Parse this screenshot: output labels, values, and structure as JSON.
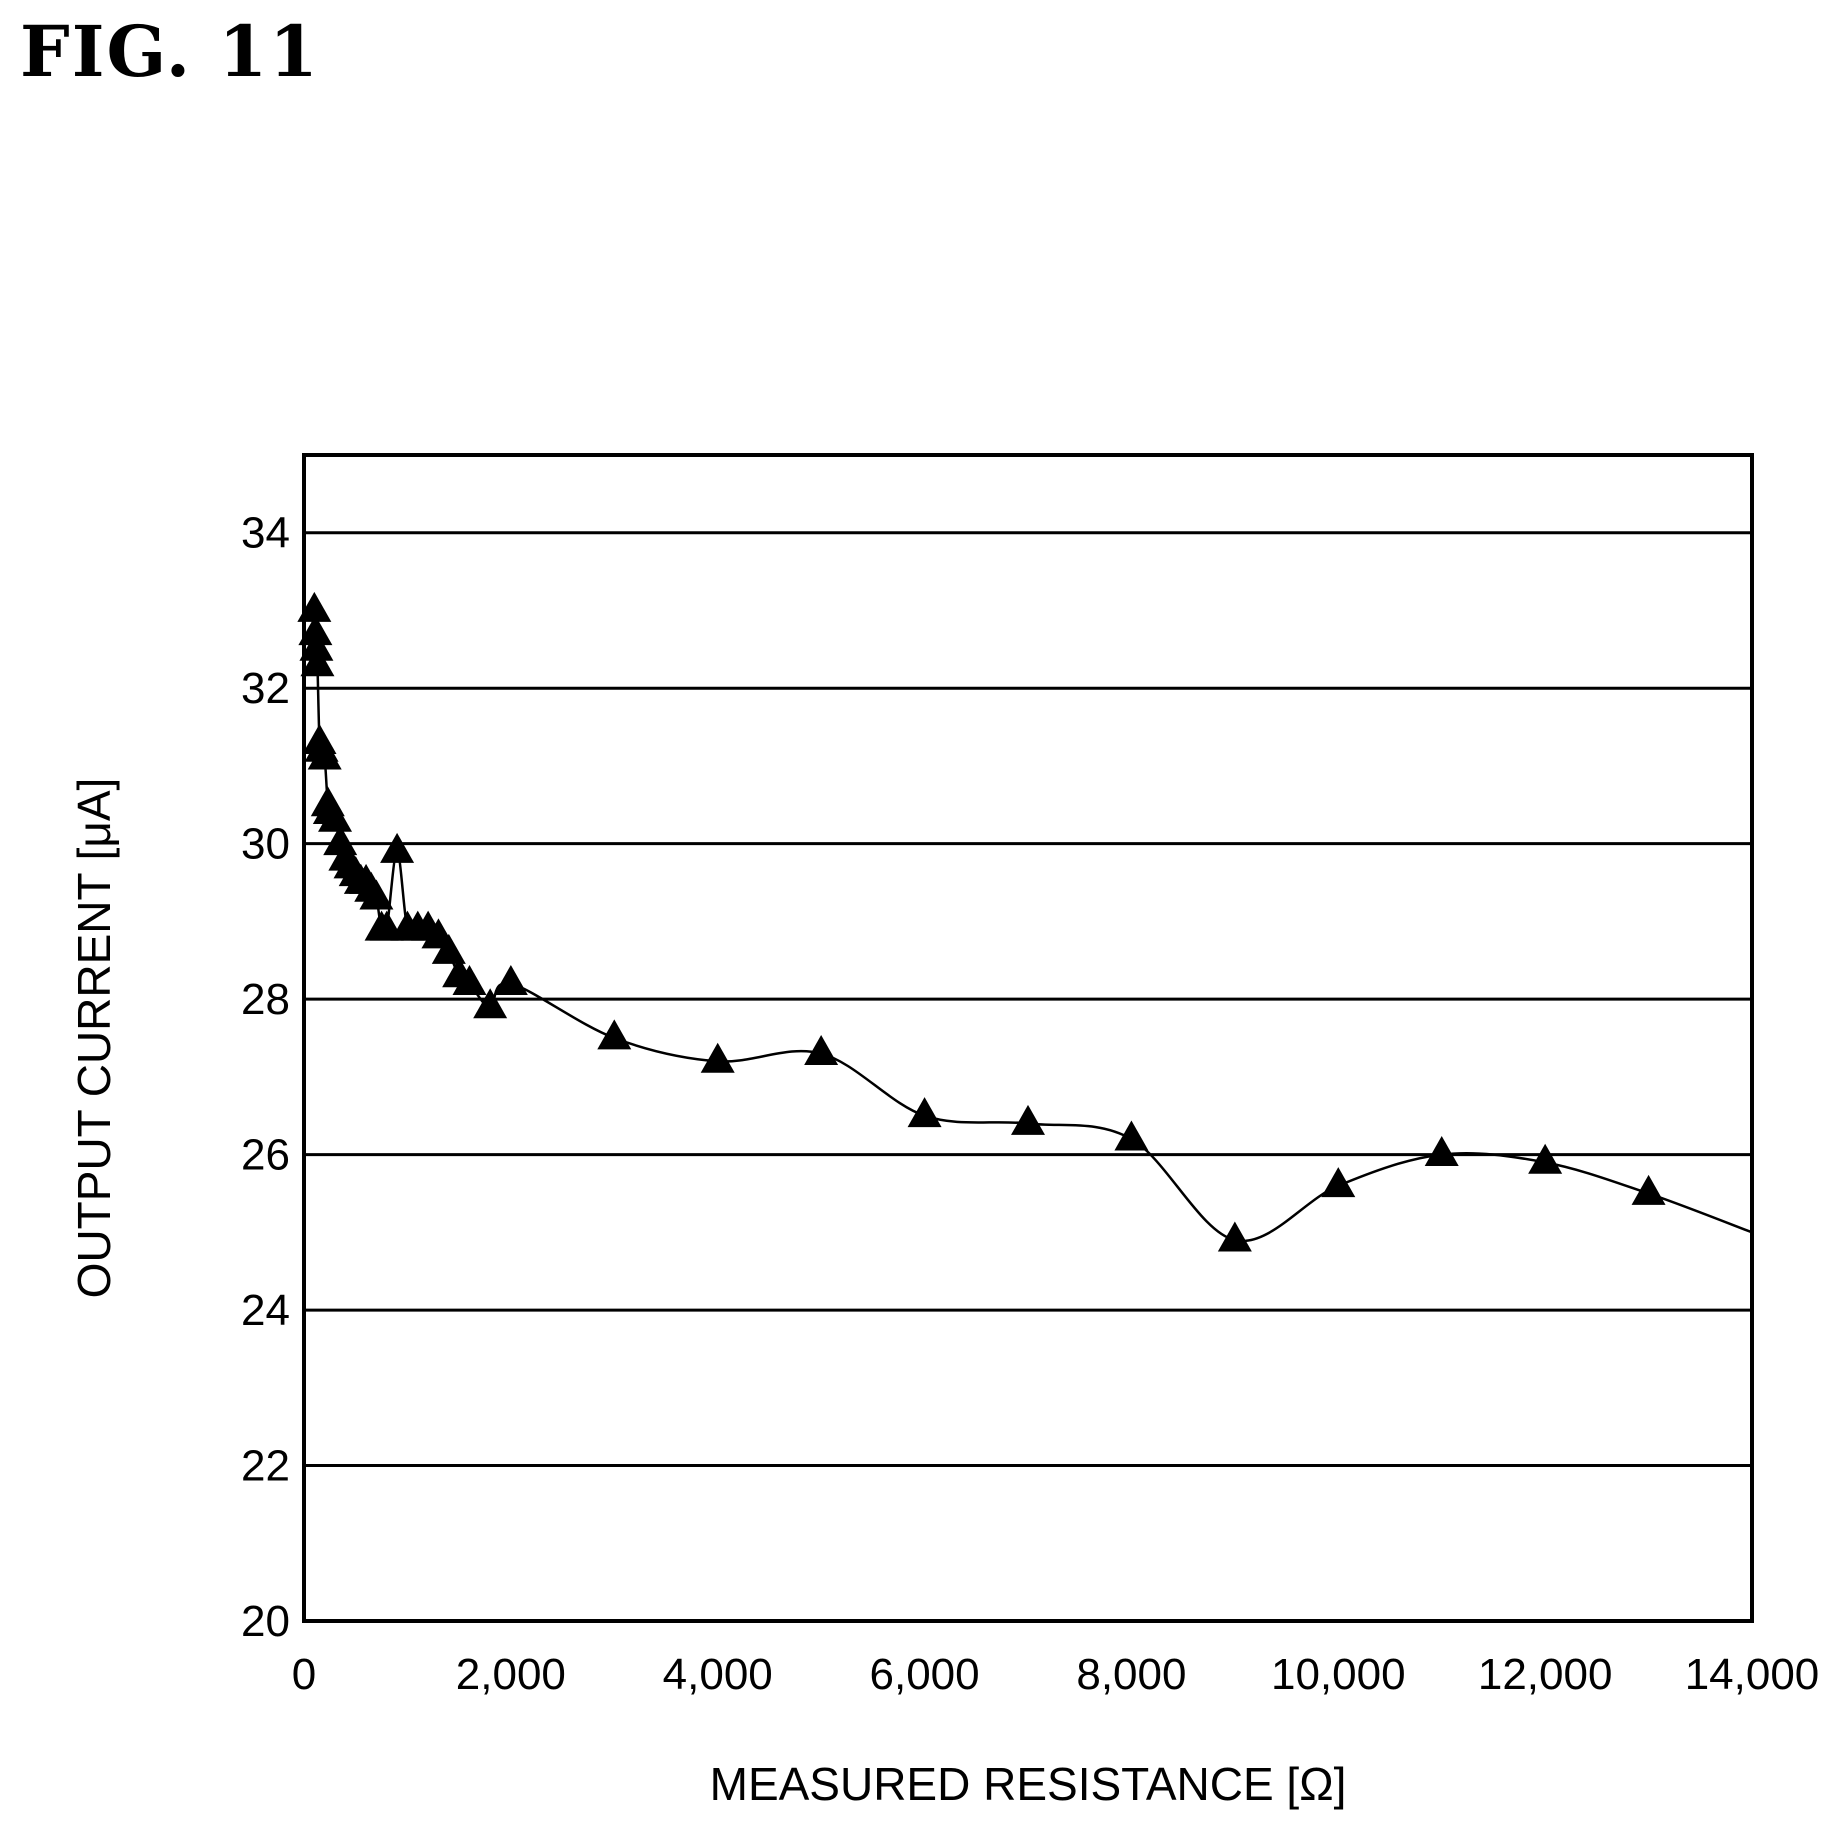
{
  "figure_label": "FIG. 11",
  "chart_data": {
    "type": "line",
    "xlabel": "MEASURED RESISTANCE [Ω]",
    "ylabel": "OUTPUT CURRENT [μA]",
    "xlim": [
      0,
      14000
    ],
    "ylim": [
      20,
      35
    ],
    "x_ticks": [
      0,
      2000,
      4000,
      6000,
      8000,
      10000,
      12000,
      14000
    ],
    "x_tick_labels": [
      "0",
      "2,000",
      "4,000",
      "6,000",
      "8,000",
      "10,000",
      "12,000",
      "14,000"
    ],
    "y_ticks": [
      20,
      22,
      24,
      26,
      28,
      30,
      32,
      34
    ],
    "y_tick_labels": [
      "20",
      "22",
      "24",
      "26",
      "28",
      "30",
      "32",
      "34"
    ],
    "grid": "horizontal",
    "marker": "triangle",
    "series": [
      {
        "x": [
          100,
          110,
          120,
          130,
          150,
          170,
          200,
          230,
          250,
          300,
          350,
          400,
          450,
          500,
          550,
          600,
          650,
          700,
          750,
          800,
          900,
          1000,
          1100,
          1200,
          1300,
          1400,
          1500,
          1600,
          1800,
          2000,
          3000,
          4000,
          5000,
          6000,
          7000,
          8000,
          9000,
          10000,
          11000,
          12000,
          13000
        ],
        "y": [
          33.0,
          32.7,
          32.5,
          32.3,
          31.3,
          31.2,
          31.1,
          30.5,
          30.4,
          30.3,
          30.0,
          29.8,
          29.7,
          29.6,
          29.5,
          29.5,
          29.4,
          29.3,
          28.9,
          28.9,
          29.9,
          28.9,
          28.9,
          28.9,
          28.8,
          28.6,
          28.3,
          28.2,
          27.9,
          28.2,
          27.5,
          27.2,
          27.3,
          26.5,
          26.4,
          26.2,
          24.9,
          25.6,
          26.0,
          25.9,
          25.5
        ]
      }
    ],
    "line_end": {
      "x": 14000,
      "y": 25.0
    }
  }
}
